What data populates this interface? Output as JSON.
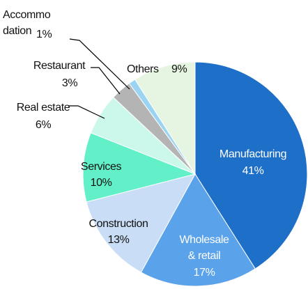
{
  "chart_data": {
    "type": "pie",
    "categories": [
      "Manufacturing",
      "Wholesale\n& retail",
      "Construction",
      "Services",
      "Real estate",
      "Restaurant",
      "Accommo\ndation",
      "Others"
    ],
    "values": [
      41,
      17,
      13,
      10,
      6,
      3,
      1,
      9
    ],
    "value_labels": [
      "41%",
      "17%",
      "13%",
      "10%",
      "6%",
      "3%",
      "1%",
      "9%"
    ],
    "colors": [
      "#1e6fc8",
      "#5aa2ea",
      "#c9def6",
      "#62f0c9",
      "#cbf8ea",
      "#b4b4b4",
      "#9ad4f2",
      "#e6f5e2"
    ]
  }
}
